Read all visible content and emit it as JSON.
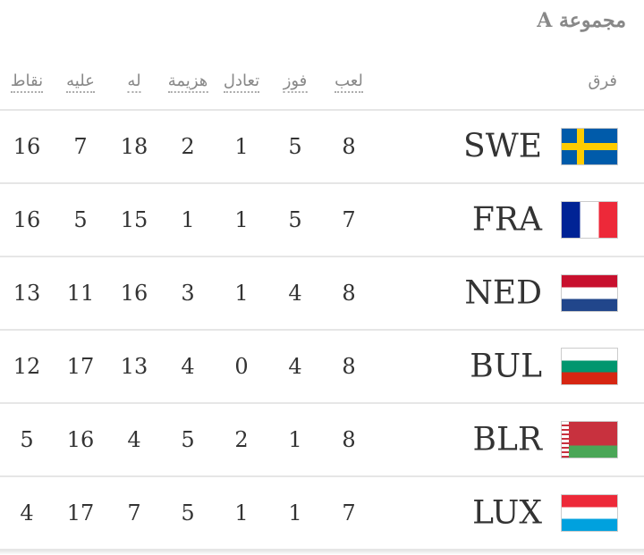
{
  "header": {
    "title": "مجموعة A"
  },
  "table": {
    "columns": [
      "فرق",
      "لعب",
      "فوز",
      "تعادل",
      "هزيمة",
      "له",
      "عليه",
      "نقاط"
    ],
    "rows": [
      [
        "SWE",
        8,
        5,
        1,
        2,
        18,
        7,
        16
      ],
      [
        "FRA",
        7,
        5,
        1,
        1,
        15,
        5,
        16
      ],
      [
        "NED",
        8,
        4,
        1,
        3,
        16,
        11,
        13
      ],
      [
        "BUL",
        8,
        4,
        0,
        4,
        13,
        17,
        12
      ],
      [
        "BLR",
        8,
        1,
        2,
        5,
        4,
        16,
        5
      ],
      [
        "LUX",
        7,
        1,
        1,
        5,
        7,
        17,
        4
      ]
    ]
  }
}
